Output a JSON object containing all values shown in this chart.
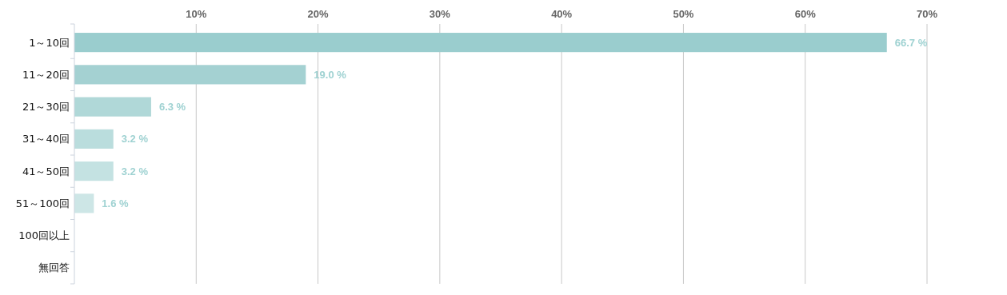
{
  "chart_data": {
    "type": "bar",
    "orientation": "horizontal",
    "categories": [
      "1～10回",
      "11～20回",
      "21～30回",
      "31～40回",
      "41～50回",
      "51～100回",
      "100回以上",
      "無回答"
    ],
    "values": [
      66.7,
      19.0,
      6.3,
      3.2,
      3.2,
      1.6,
      0,
      0
    ],
    "colors": [
      "#9acdce",
      "#a4d1d2",
      "#b0d8d8",
      "#badddd",
      "#c4e2e2",
      "#cde6e6",
      "#d5eaea",
      "#dceeee"
    ],
    "value_labels": [
      "66.7 %",
      "19.0 %",
      "6.3 %",
      "3.2 %",
      "3.2 %",
      "1.6 %",
      null,
      null
    ],
    "xlim": [
      0,
      70
    ],
    "xticks": [
      {
        "value": 10,
        "label": "10%"
      },
      {
        "value": 20,
        "label": "20%"
      },
      {
        "value": 30,
        "label": "30%"
      },
      {
        "value": 40,
        "label": "40%"
      },
      {
        "value": 50,
        "label": "50%"
      },
      {
        "value": 60,
        "label": "60%"
      },
      {
        "value": 70,
        "label": "70%"
      }
    ],
    "grid": "x"
  }
}
